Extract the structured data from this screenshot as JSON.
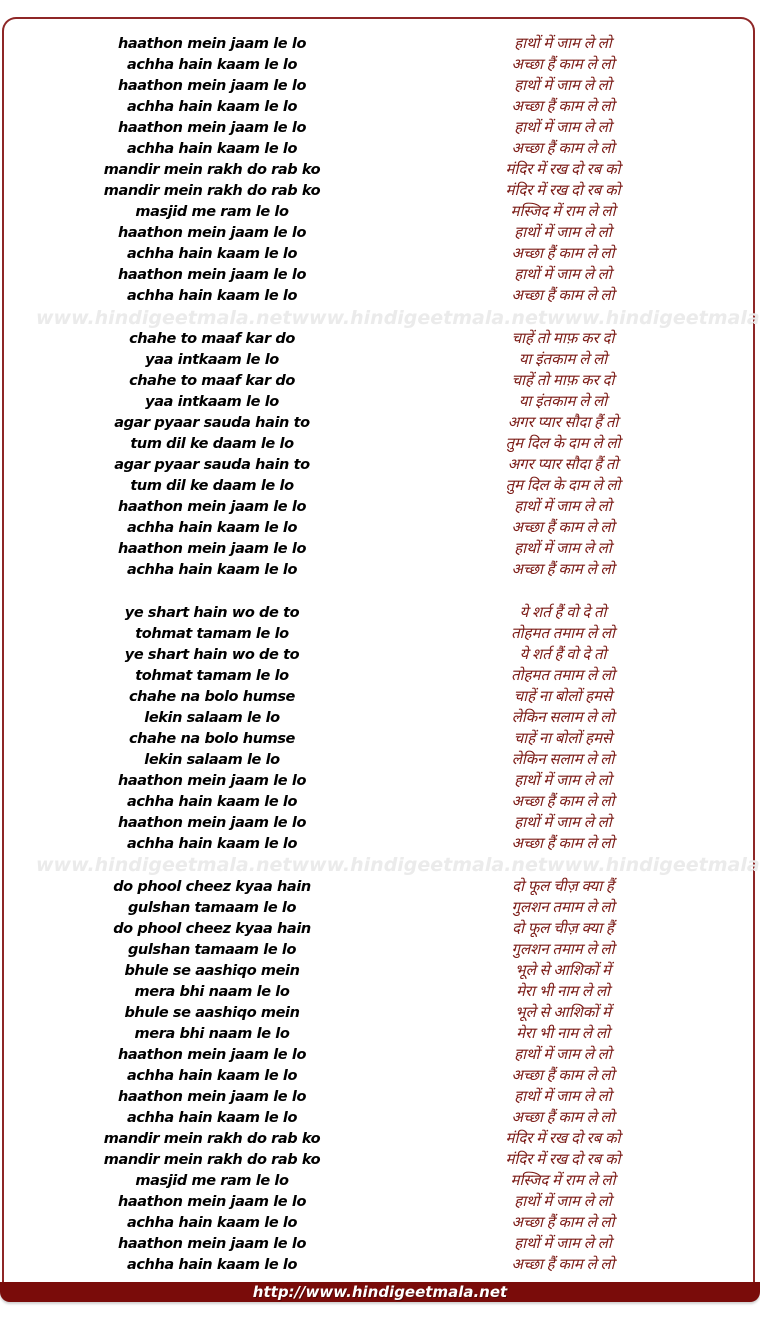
{
  "page": {
    "watermark_text": "www.hindigeetmala.net",
    "footer_url": "http://www.hindigeetmala.net"
  },
  "colors": {
    "latin_text": "#000000",
    "hindi_text": "#7b1a15",
    "watermark": "#ebebeb",
    "border": "#8e2626",
    "footer_background": "#7a0c0a",
    "footer_text": "#ffffff",
    "page_background": "#ffffff"
  },
  "lyrics": {
    "stanzas": [
      {
        "latin": [
          "haathon mein jaam le lo",
          "achha hain kaam le lo",
          "haathon mein jaam le lo",
          "achha hain kaam le lo",
          "haathon mein jaam le lo",
          "achha hain kaam le lo",
          "mandir mein rakh do rab ko",
          "mandir mein rakh do rab ko",
          "masjid me ram le lo",
          "haathon mein jaam le lo",
          "achha hain kaam le lo",
          "haathon mein jaam le lo",
          "achha hain kaam le lo"
        ],
        "hindi": [
          "हाथों में जाम ले लो",
          "अच्छा हैं काम ले लो",
          "हाथों में जाम ले लो",
          "अच्छा हैं काम ले लो",
          "हाथों में जाम ले लो",
          "अच्छा हैं काम ले लो",
          "मंदिर में रख दो रब को",
          "मंदिर में रख दो रब को",
          "मस्जिद में राम ले लो",
          "हाथों में जाम ले लो",
          "अच्छा हैं काम ले लो",
          "हाथों में जाम ले लो",
          "अच्छा हैं काम ले लो"
        ]
      },
      {
        "latin": [
          "chahe to maaf kar do",
          "yaa intkaam le lo",
          "chahe to maaf kar do",
          "yaa intkaam le lo",
          "agar pyaar sauda hain to",
          "tum dil ke daam le lo",
          "agar pyaar sauda hain to",
          "tum dil ke daam le lo",
          "haathon mein jaam le lo",
          "achha hain kaam le lo",
          "haathon mein jaam le lo",
          "achha hain kaam le lo"
        ],
        "hindi": [
          "चाहें तो माफ़ कर दो",
          "या इंतकाम ले लो",
          "चाहें तो माफ़ कर दो",
          "या इंतकाम ले लो",
          "अगर प्यार सौदा हैं तो",
          "तुम दिल के दाम ले लो",
          "अगर प्यार सौदा हैं तो",
          "तुम दिल के दाम ले लो",
          "हाथों में जाम ले लो",
          "अच्छा हैं काम ले लो",
          "हाथों में जाम ले लो",
          "अच्छा हैं काम ले लो"
        ]
      },
      {
        "latin": [
          "ye shart hain wo de to",
          "tohmat tamam le lo",
          "ye shart hain wo de to",
          "tohmat tamam le lo",
          "chahe na bolo humse",
          "lekin salaam le lo",
          "chahe na bolo humse",
          "lekin salaam le lo",
          "haathon mein jaam le lo",
          "achha hain kaam le lo",
          "haathon mein jaam le lo",
          "achha hain kaam le lo"
        ],
        "hindi": [
          "ये शर्त हैं वो दे तो",
          "तोहमत तमाम ले लो",
          "ये शर्त हैं वो दे तो",
          "तोहमत तमाम ले लो",
          "चाहें ना बोलों हमसे",
          "लेकिन सलाम ले लो",
          "चाहें ना बोलों हमसे",
          "लेकिन सलाम ले लो",
          "हाथों में जाम ले लो",
          "अच्छा हैं काम ले लो",
          "हाथों में जाम ले लो",
          "अच्छा हैं काम ले लो"
        ]
      },
      {
        "latin": [
          "do phool cheez kyaa hain",
          "gulshan tamaam le lo",
          "do phool cheez kyaa hain",
          "gulshan tamaam le lo",
          "bhule se aashiqo mein",
          "mera bhi naam le lo",
          "bhule se aashiqo mein",
          "mera bhi naam le lo",
          "haathon mein jaam le lo",
          "achha hain kaam le lo",
          "haathon mein jaam le lo",
          "achha hain kaam le lo",
          "mandir mein rakh do rab ko",
          "mandir mein rakh do rab ko",
          "masjid me ram le lo",
          "haathon mein jaam le lo",
          "achha hain kaam le lo",
          "haathon mein jaam le lo",
          "achha hain kaam le lo"
        ],
        "hindi": [
          "दो फूल चीज़ क्या हैं",
          "गुलशन तमाम ले लो",
          "दो फूल चीज़ क्या हैं",
          "गुलशन तमाम ले लो",
          "भूले से आशिकों में",
          "मेरा भी नाम ले लो",
          "भूले से आशिकों में",
          "मेरा भी नाम ले लो",
          "हाथों में जाम ले लो",
          "अच्छा हैं काम ले लो",
          "हाथों में जाम ले लो",
          "अच्छा हैं काम ले लो",
          "मंदिर में रख दो रब को",
          "मंदिर में रख दो रब को",
          "मस्जिद में राम ले लो",
          "हाथों में जाम ले लो",
          "अच्छा हैं काम ले लो",
          "हाथों में जाम ले लो",
          "अच्छा हैं काम ले लो"
        ]
      }
    ]
  }
}
